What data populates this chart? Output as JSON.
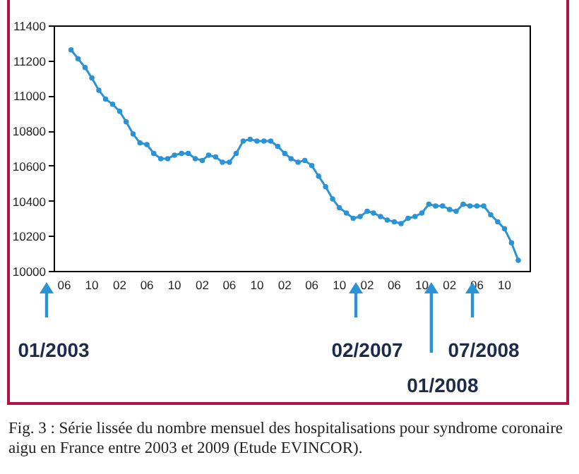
{
  "chart_data": {
    "type": "line",
    "color": "#2a93d5",
    "marker": "circle",
    "line_style": "solid",
    "x": [
      "2003-07",
      "2003-08",
      "2003-09",
      "2003-10",
      "2003-11",
      "2003-12",
      "2004-01",
      "2004-02",
      "2004-03",
      "2004-04",
      "2004-05",
      "2004-06",
      "2004-07",
      "2004-08",
      "2004-09",
      "2004-10",
      "2004-11",
      "2004-12",
      "2005-01",
      "2005-02",
      "2005-03",
      "2005-04",
      "2005-05",
      "2005-06",
      "2005-07",
      "2005-08",
      "2005-09",
      "2005-10",
      "2005-11",
      "2005-12",
      "2006-01",
      "2006-02",
      "2006-03",
      "2006-04",
      "2006-05",
      "2006-06",
      "2006-07",
      "2006-08",
      "2006-09",
      "2006-10",
      "2006-11",
      "2006-12",
      "2007-01",
      "2007-02",
      "2007-03",
      "2007-04",
      "2007-05",
      "2007-06",
      "2007-07",
      "2007-08",
      "2007-09",
      "2007-10",
      "2007-11",
      "2007-12",
      "2008-01",
      "2008-02",
      "2008-03",
      "2008-04",
      "2008-05",
      "2008-06",
      "2008-07",
      "2008-08",
      "2008-09",
      "2008-10",
      "2008-11",
      "2008-12"
    ],
    "values": [
      11260,
      11210,
      11160,
      11100,
      11030,
      10980,
      10950,
      10910,
      10850,
      10780,
      10730,
      10720,
      10670,
      10640,
      10640,
      10660,
      10670,
      10670,
      10640,
      10630,
      10660,
      10650,
      10620,
      10620,
      10670,
      10740,
      10750,
      10740,
      10740,
      10740,
      10710,
      10670,
      10640,
      10620,
      10630,
      10600,
      10540,
      10480,
      10410,
      10360,
      10330,
      10300,
      10310,
      10340,
      10330,
      10310,
      10290,
      10280,
      10270,
      10300,
      10310,
      10330,
      10380,
      10370,
      10370,
      10350,
      10340,
      10380,
      10370,
      10370,
      10370,
      10320,
      10280,
      10240,
      10160,
      10060
    ],
    "xlim": [
      "2003-04-15",
      "2009-01-20"
    ],
    "xticks": [
      {
        "value": "2003-06",
        "label": "06"
      },
      {
        "value": "2003-10",
        "label": "10"
      },
      {
        "value": "2004-02",
        "label": "02"
      },
      {
        "value": "2004-06",
        "label": "06"
      },
      {
        "value": "2004-10",
        "label": "10"
      },
      {
        "value": "2005-02",
        "label": "02"
      },
      {
        "value": "2005-06",
        "label": "06"
      },
      {
        "value": "2005-10",
        "label": "10"
      },
      {
        "value": "2006-02",
        "label": "02"
      },
      {
        "value": "2006-06",
        "label": "06"
      },
      {
        "value": "2006-10",
        "label": "10"
      },
      {
        "value": "2007-02",
        "label": "02"
      },
      {
        "value": "2007-06",
        "label": "06"
      },
      {
        "value": "2007-10",
        "label": "10"
      },
      {
        "value": "2008-02",
        "label": "02"
      },
      {
        "value": "2008-06",
        "label": "06"
      },
      {
        "value": "2008-10",
        "label": "10"
      }
    ],
    "ylim": [
      10000,
      11400
    ],
    "yticks": [
      10000,
      10200,
      10400,
      10600,
      10800,
      11000,
      11200,
      11400
    ],
    "annotations": [
      "01/2003",
      "02/2007",
      "01/2008",
      "07/2008",
      "Fig. 3 : Série lissée du nombre mensuel des hospitalisations pour syndrome coronaire aigu en France entre 2003 et 2009 (Etude EVINCOR)."
    ]
  }
}
